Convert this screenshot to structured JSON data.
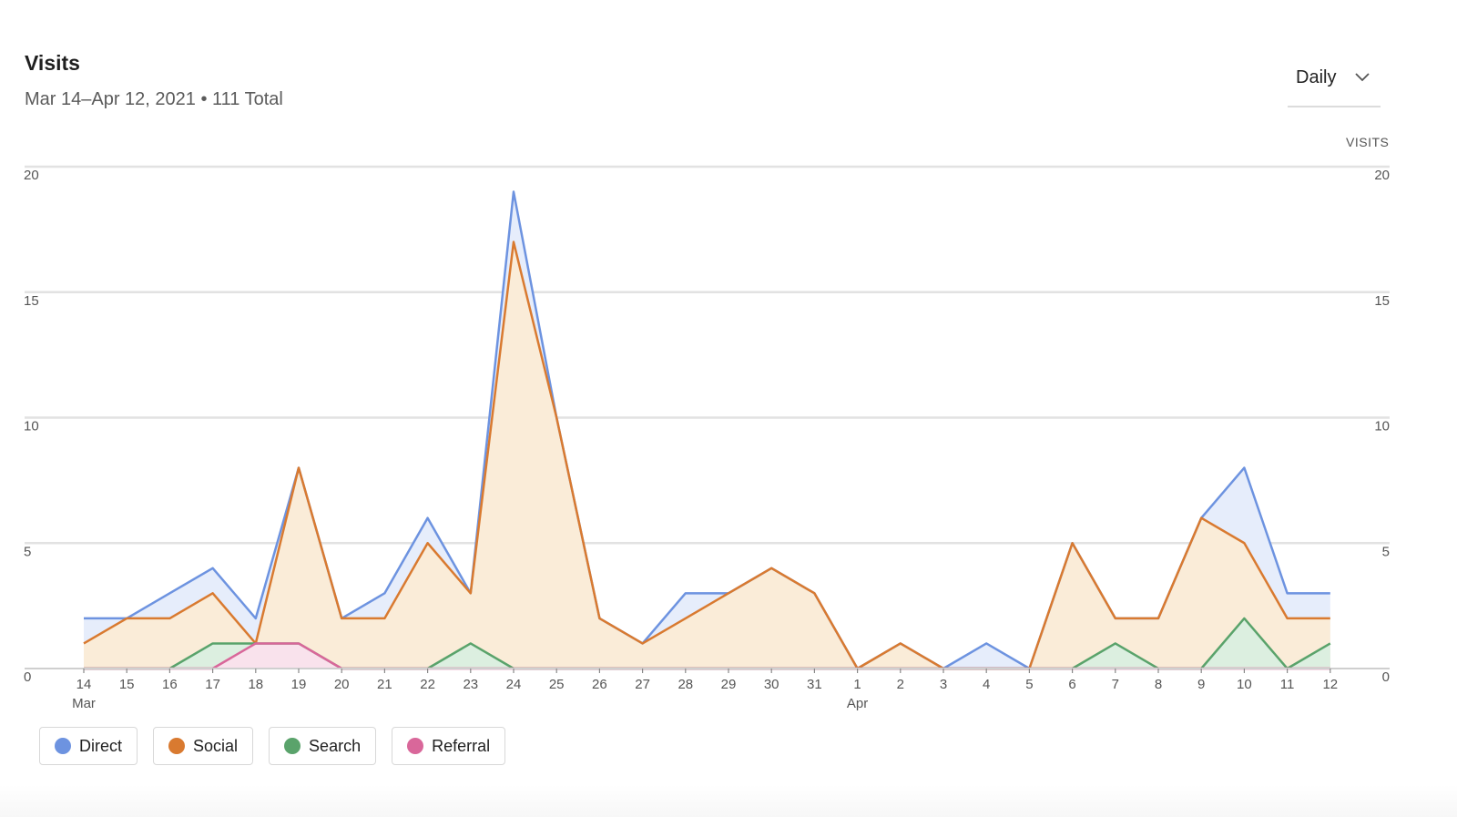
{
  "header": {
    "title": "Visits",
    "subtitle": "Mar 14–Apr 12, 2021 • 111 Total"
  },
  "period_select": {
    "value": "Daily",
    "icon": "chevron-down-icon"
  },
  "axis_unit": "VISITS",
  "colors": {
    "Direct": "#6d93e0",
    "Social": "#d97a30",
    "Search": "#5aa36b",
    "Referral": "#d9679a",
    "grid": "#e2e2e2"
  },
  "legend": [
    {
      "label": "Direct",
      "color": "#6d93e0"
    },
    {
      "label": "Social",
      "color": "#d97a30"
    },
    {
      "label": "Search",
      "color": "#5aa36b"
    },
    {
      "label": "Referral",
      "color": "#d9679a"
    }
  ],
  "chart_data": {
    "type": "area",
    "x": [
      "14",
      "15",
      "16",
      "17",
      "18",
      "19",
      "20",
      "21",
      "22",
      "23",
      "24",
      "25",
      "26",
      "27",
      "28",
      "29",
      "30",
      "31",
      "1",
      "2",
      "3",
      "4",
      "5",
      "6",
      "7",
      "8",
      "9",
      "10",
      "11",
      "12"
    ],
    "month_labels": [
      {
        "index": 0,
        "label": "Mar"
      },
      {
        "index": 18,
        "label": "Apr"
      }
    ],
    "ylim": [
      0,
      20
    ],
    "yticks": [
      0,
      5,
      10,
      15,
      20
    ],
    "grid": true,
    "dual_y_axis": true,
    "series": [
      {
        "name": "Direct",
        "values": [
          2,
          2,
          3,
          4,
          2,
          8,
          2,
          3,
          6,
          3,
          19,
          10,
          2,
          1,
          3,
          3,
          4,
          3,
          0,
          1,
          0,
          1,
          0,
          5,
          2,
          2,
          6,
          8,
          3,
          3
        ]
      },
      {
        "name": "Social",
        "values": [
          1,
          2,
          2,
          3,
          1,
          8,
          2,
          2,
          5,
          3,
          17,
          10,
          2,
          1,
          2,
          3,
          4,
          3,
          0,
          1,
          0,
          0,
          0,
          5,
          2,
          2,
          6,
          5,
          2,
          2
        ]
      },
      {
        "name": "Search",
        "values": [
          0,
          0,
          0,
          1,
          1,
          1,
          0,
          0,
          0,
          1,
          0,
          0,
          0,
          0,
          0,
          0,
          0,
          0,
          0,
          0,
          0,
          0,
          0,
          0,
          1,
          0,
          0,
          2,
          0,
          1
        ]
      },
      {
        "name": "Referral",
        "values": [
          0,
          0,
          0,
          0,
          1,
          1,
          0,
          0,
          0,
          0,
          0,
          0,
          0,
          0,
          0,
          0,
          0,
          0,
          0,
          0,
          0,
          0,
          0,
          0,
          0,
          0,
          0,
          0,
          0,
          0
        ]
      }
    ]
  }
}
